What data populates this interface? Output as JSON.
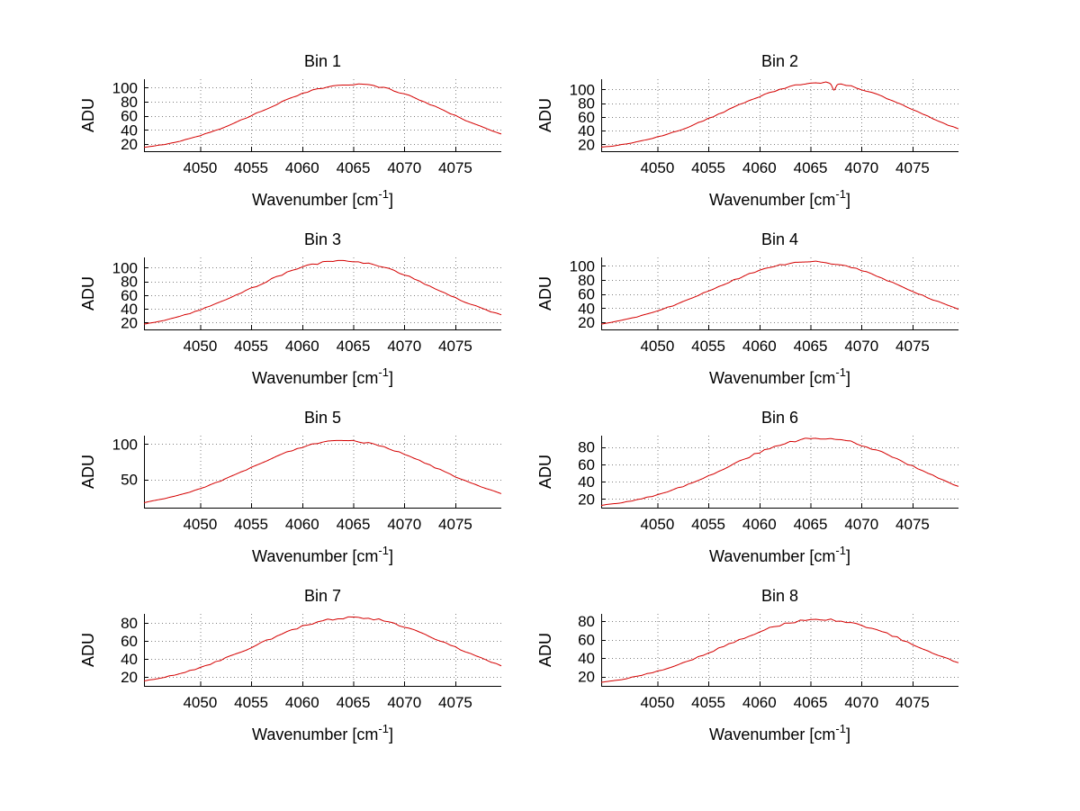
{
  "figure": {
    "background": "#ffffff",
    "curve_color": "#d40000",
    "axis_color": "#000000",
    "grid_color": "#808080"
  },
  "axis_labels": {
    "x_prefix": "Wavenumber [cm",
    "x_sup": "-1",
    "x_suffix": "]",
    "y": "ADU"
  },
  "chart_data": {
    "type": "line",
    "layout": "4x2-subplots",
    "title": "",
    "xlabel": "Wavenumber [cm^-1]",
    "ylabel": "ADU",
    "grid": "dotted",
    "legend": "none",
    "x": [
      4045,
      4047,
      4049,
      4051,
      4053,
      4055,
      4057,
      4059,
      4061,
      4063,
      4065,
      4067,
      4069,
      4071,
      4073,
      4075,
      4077,
      4079
    ],
    "xticks": [
      4050,
      4055,
      4060,
      4065,
      4070,
      4075
    ],
    "xlim": [
      4044.5,
      4079.5
    ],
    "subplots": [
      {
        "title": "Bin 1",
        "values": [
          16.2,
          21.1,
          28.0,
          36.9,
          47.9,
          60.3,
          73.3,
          85.7,
          95.9,
          102.6,
          105.0,
          102.6,
          95.9,
          85.7,
          73.3,
          60.3,
          47.9,
          36.9
        ],
        "yticks": [
          20,
          40,
          60,
          80,
          100
        ],
        "ylim": [
          10,
          112
        ],
        "model": {
          "baseline": 8,
          "amplitude": 97,
          "center": 4065,
          "sigma": 9
        },
        "noise": 1.2
      },
      {
        "title": "Bin 2",
        "values": [
          16.6,
          20.8,
          26.8,
          34.9,
          45.2,
          57.4,
          70.7,
          83.9,
          95.7,
          104.6,
          109.4,
          109.4,
          104.6,
          95.7,
          83.9,
          70.7,
          57.4,
          45.2
        ],
        "yticks": [
          20,
          40,
          60,
          80,
          100
        ],
        "ylim": [
          10,
          115
        ],
        "model": {
          "baseline": 10,
          "amplitude": 100,
          "center": 4066,
          "sigma": 9
        },
        "noise": 1.3,
        "spike": {
          "x": 4067.3,
          "depth": 9,
          "width": 0.15
        }
      },
      {
        "title": "Bin 3",
        "values": [
          19.0,
          25.1,
          33.4,
          43.9,
          56.3,
          69.9,
          83.4,
          95.4,
          104.5,
          109.4,
          109.4,
          104.5,
          95.4,
          83.4,
          69.9,
          56.3,
          43.9,
          33.4
        ],
        "yticks": [
          20,
          40,
          60,
          80,
          100
        ],
        "ylim": [
          10,
          115
        ],
        "model": {
          "baseline": 8,
          "amplitude": 102,
          "center": 4064,
          "sigma": 9
        },
        "noise": 1.4
      },
      {
        "title": "Bin 4",
        "values": [
          18.7,
          24.3,
          31.7,
          41.1,
          52.1,
          64.3,
          76.7,
          88.3,
          97.7,
          103.9,
          106.0,
          103.9,
          97.7,
          88.3,
          76.7,
          64.3,
          52.1,
          41.1
        ],
        "yticks": [
          20,
          40,
          60,
          80,
          100
        ],
        "ylim": [
          10,
          112
        ],
        "model": {
          "baseline": 8,
          "amplitude": 98,
          "center": 4065,
          "sigma": 9.5
        },
        "noise": 1.3
      },
      {
        "title": "Bin 5",
        "values": [
          18.4,
          24.3,
          32.2,
          42.2,
          54.0,
          66.8,
          79.7,
          91.1,
          99.8,
          104.4,
          104.4,
          99.8,
          91.1,
          79.7,
          66.8,
          54.0,
          42.2,
          32.2
        ],
        "yticks": [
          50,
          100
        ],
        "ylim": [
          10,
          112
        ],
        "model": {
          "baseline": 8,
          "amplitude": 97,
          "center": 4064,
          "sigma": 9
        },
        "noise": 1.2
      },
      {
        "title": "Bin 6",
        "values": [
          13.4,
          16.8,
          21.8,
          28.4,
          36.9,
          46.9,
          57.7,
          68.6,
          78.3,
          85.6,
          89.5,
          89.5,
          85.6,
          78.3,
          68.6,
          57.7,
          46.9,
          36.9
        ],
        "yticks": [
          20,
          40,
          60,
          80
        ],
        "ylim": [
          10,
          93
        ],
        "model": {
          "baseline": 8,
          "amplitude": 82,
          "center": 4066,
          "sigma": 9
        },
        "noise": 1.3
      },
      {
        "title": "Bin 7",
        "values": [
          16.5,
          21.0,
          26.9,
          34.3,
          43.1,
          52.8,
          62.7,
          71.9,
          79.4,
          84.3,
          86.0,
          84.3,
          79.4,
          71.9,
          62.7,
          52.8,
          43.1,
          34.3
        ],
        "yticks": [
          20,
          40,
          60,
          80
        ],
        "ylim": [
          10,
          90
        ],
        "model": {
          "baseline": 8,
          "amplitude": 78,
          "center": 4065,
          "sigma": 9.5
        },
        "noise": 1.2
      },
      {
        "title": "Bin 8",
        "values": [
          14.4,
          18.0,
          22.9,
          29.3,
          37.0,
          45.9,
          55.2,
          64.4,
          72.4,
          78.4,
          81.6,
          81.6,
          78.4,
          72.4,
          64.4,
          55.2,
          45.9,
          37.0
        ],
        "yticks": [
          20,
          40,
          60,
          80
        ],
        "ylim": [
          10,
          88
        ],
        "model": {
          "baseline": 8,
          "amplitude": 74,
          "center": 4066,
          "sigma": 9.5
        },
        "noise": 1.2
      }
    ]
  }
}
